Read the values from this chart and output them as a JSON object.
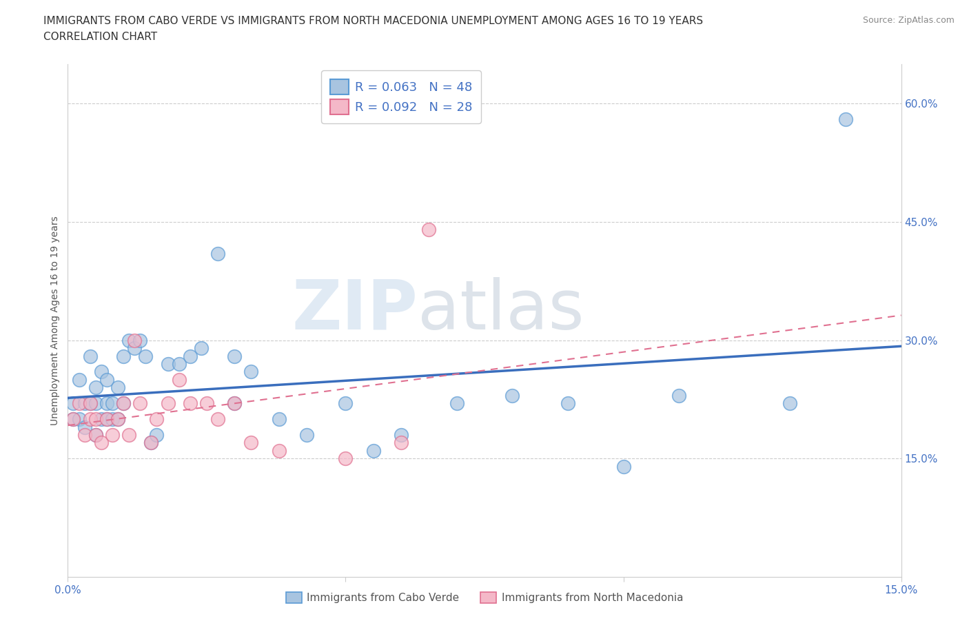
{
  "title_line1": "IMMIGRANTS FROM CABO VERDE VS IMMIGRANTS FROM NORTH MACEDONIA UNEMPLOYMENT AMONG AGES 16 TO 19 YEARS",
  "title_line2": "CORRELATION CHART",
  "source": "Source: ZipAtlas.com",
  "ylabel": "Unemployment Among Ages 16 to 19 years",
  "xlim": [
    0.0,
    0.15
  ],
  "ylim": [
    0.0,
    0.65
  ],
  "xticks": [
    0.0,
    0.05,
    0.1,
    0.15
  ],
  "xtick_labels": [
    "0.0%",
    "",
    "",
    "15.0%"
  ],
  "yticks_right": [
    0.15,
    0.3,
    0.45,
    0.6
  ],
  "ytick_labels_right": [
    "15.0%",
    "30.0%",
    "45.0%",
    "60.0%"
  ],
  "R_cabo": 0.063,
  "N_cabo": 48,
  "R_mac": 0.092,
  "N_mac": 28,
  "color_cabo": "#a8c4e0",
  "color_mac": "#f4b8c8",
  "edge_cabo": "#5b9bd5",
  "edge_mac": "#e07090",
  "trend_color_cabo": "#3a6ebd",
  "trend_color_mac": "#e07090",
  "cabo_verde_x": [
    0.001,
    0.001,
    0.002,
    0.002,
    0.003,
    0.003,
    0.004,
    0.004,
    0.005,
    0.005,
    0.005,
    0.006,
    0.006,
    0.007,
    0.007,
    0.007,
    0.008,
    0.008,
    0.009,
    0.009,
    0.01,
    0.01,
    0.011,
    0.012,
    0.013,
    0.014,
    0.015,
    0.016,
    0.018,
    0.02,
    0.022,
    0.024,
    0.027,
    0.03,
    0.03,
    0.033,
    0.038,
    0.043,
    0.05,
    0.055,
    0.06,
    0.07,
    0.08,
    0.09,
    0.1,
    0.11,
    0.13,
    0.14
  ],
  "cabo_verde_y": [
    0.22,
    0.2,
    0.25,
    0.2,
    0.22,
    0.19,
    0.28,
    0.22,
    0.24,
    0.22,
    0.18,
    0.26,
    0.2,
    0.25,
    0.22,
    0.2,
    0.22,
    0.2,
    0.24,
    0.2,
    0.28,
    0.22,
    0.3,
    0.29,
    0.3,
    0.28,
    0.17,
    0.18,
    0.27,
    0.27,
    0.28,
    0.29,
    0.41,
    0.28,
    0.22,
    0.26,
    0.2,
    0.18,
    0.22,
    0.16,
    0.18,
    0.22,
    0.23,
    0.22,
    0.14,
    0.23,
    0.22,
    0.58
  ],
  "north_mac_x": [
    0.001,
    0.002,
    0.003,
    0.004,
    0.004,
    0.005,
    0.005,
    0.006,
    0.007,
    0.008,
    0.009,
    0.01,
    0.011,
    0.012,
    0.013,
    0.015,
    0.016,
    0.018,
    0.02,
    0.022,
    0.025,
    0.027,
    0.03,
    0.033,
    0.038,
    0.05,
    0.06,
    0.065
  ],
  "north_mac_y": [
    0.2,
    0.22,
    0.18,
    0.22,
    0.2,
    0.2,
    0.18,
    0.17,
    0.2,
    0.18,
    0.2,
    0.22,
    0.18,
    0.3,
    0.22,
    0.17,
    0.2,
    0.22,
    0.25,
    0.22,
    0.22,
    0.2,
    0.22,
    0.17,
    0.16,
    0.15,
    0.17,
    0.44
  ],
  "watermark_ZIP": "ZIP",
  "watermark_atlas": "atlas",
  "legend_label_cabo": "Immigrants from Cabo Verde",
  "legend_label_mac": "Immigrants from North Macedonia",
  "title_fontsize": 11,
  "axis_label_fontsize": 10,
  "tick_fontsize": 11,
  "source_fontsize": 9
}
